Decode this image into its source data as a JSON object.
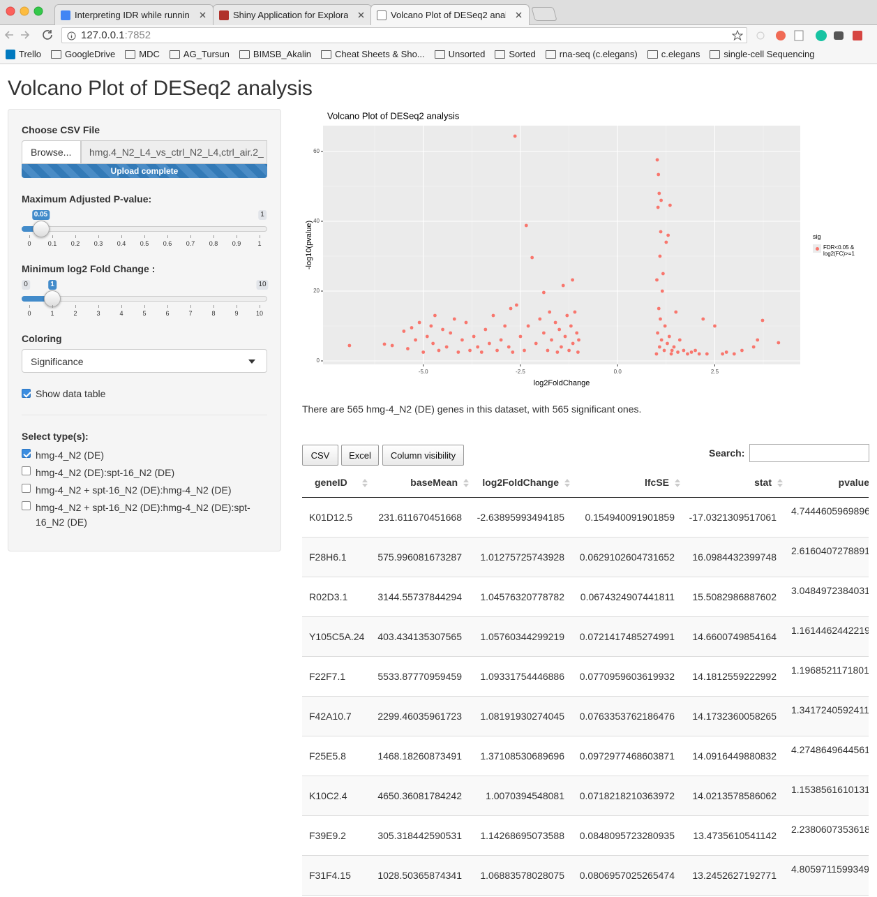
{
  "browser": {
    "tabs": [
      "Interpreting IDR while running",
      "Shiny Application for Explorato",
      "Volcano Plot of DESeq2 analys"
    ],
    "url_host": "127.0.0.1",
    "url_port": ":7852",
    "bookmarks": [
      "Trello",
      "GoogleDrive",
      "MDC",
      "AG_Tursun",
      "BIMSB_Akalin",
      "Cheat Sheets & Sho...",
      "Unsorted",
      "Sorted",
      "rna-seq (c.elegans)",
      "c.elegans",
      "single-cell Sequencing"
    ]
  },
  "app": {
    "title": "Volcano Plot of DESeq2 analysis",
    "file_label": "Choose CSV File",
    "browse": "Browse...",
    "file_name": "hmg.4_N2_L4_vs_ctrl_N2_L4,ctrl_air.2_",
    "upload_status": "Upload complete",
    "sliders": [
      {
        "label": "Maximum Adjusted P-value:",
        "min": 0,
        "max": 1,
        "value": 0.05,
        "ticks": [
          0,
          0.1,
          0.2,
          0.3,
          0.4,
          0.5,
          0.6,
          0.7,
          0.8,
          0.9,
          1
        ]
      },
      {
        "label": "Minimum log2 Fold Change :",
        "min": 0,
        "max": 10,
        "value": 1,
        "ticks": [
          0,
          1,
          2,
          3,
          4,
          5,
          6,
          7,
          8,
          9,
          10
        ]
      }
    ],
    "coloring_label": "Coloring",
    "coloring_value": "Significance",
    "show_table": {
      "label": "Show data table",
      "checked": true
    },
    "types_label": "Select type(s):",
    "types": [
      {
        "label": "hmg-4_N2 (DE)",
        "checked": true
      },
      {
        "label": "hmg-4_N2 (DE):spt-16_N2 (DE)",
        "checked": false
      },
      {
        "label": "hmg-4_N2 + spt-16_N2 (DE):hmg-4_N2 (DE)",
        "checked": false
      },
      {
        "label": "hmg-4_N2 + spt-16_N2 (DE):hmg-4_N2 (DE):spt-16_N2 (DE)",
        "checked": false
      }
    ]
  },
  "chart_data": {
    "type": "scatter",
    "title": "Volcano Plot of DESeq2 analysis",
    "xlabel": "log2FoldChange",
    "ylabel": "-log10(pvalue)",
    "xlim": [
      -7.58,
      4.7
    ],
    "ylim": [
      -1,
      67.4
    ],
    "xticks": [
      {
        "value": -5,
        "label": "-5.0"
      },
      {
        "value": -2.5,
        "label": "-2.5"
      },
      {
        "value": 0,
        "label": "0.0"
      },
      {
        "value": 2.5,
        "label": "2.5"
      }
    ],
    "yticks": [
      0,
      20,
      40,
      60
    ],
    "grid": true,
    "legend_title": "sig",
    "legend_position": "right",
    "series": [
      {
        "name": "FDR<0.05 & log2(FC)>=1",
        "color": "#f8766d",
        "x": [
          -6.9,
          -6.0,
          -5.8,
          -5.5,
          -5.4,
          -5.3,
          -5.2,
          -5.1,
          -5.0,
          -4.9,
          -4.8,
          -4.75,
          -4.7,
          -4.6,
          -4.5,
          -4.4,
          -4.3,
          -4.2,
          -4.1,
          -4.0,
          -3.9,
          -3.8,
          -3.7,
          -3.6,
          -3.5,
          -3.4,
          -3.3,
          -3.2,
          -3.1,
          -3.0,
          -2.9,
          -2.8,
          -2.75,
          -2.7,
          -2.64,
          -2.6,
          -2.5,
          -2.4,
          -2.35,
          -2.3,
          -2.2,
          -2.1,
          -2.0,
          -1.9,
          -1.9,
          -1.8,
          -1.75,
          -1.7,
          -1.6,
          -1.55,
          -1.5,
          -1.45,
          -1.4,
          -1.35,
          -1.3,
          -1.25,
          -1.2,
          -1.16,
          -1.15,
          -1.1,
          -1.05,
          -1.02,
          -1.0,
          1.0,
          1.01,
          1.02,
          1.03,
          1.04,
          1.05,
          1.06,
          1.07,
          1.08,
          1.09,
          1.1,
          1.11,
          1.12,
          1.13,
          1.15,
          1.17,
          1.2,
          1.22,
          1.25,
          1.28,
          1.3,
          1.33,
          1.35,
          1.38,
          1.4,
          1.45,
          1.5,
          1.55,
          1.6,
          1.7,
          1.8,
          1.9,
          2.0,
          2.1,
          2.2,
          2.3,
          2.5,
          2.7,
          2.8,
          3.0,
          3.2,
          3.5,
          3.6,
          3.73,
          4.14
        ],
        "values": [
          4.4,
          4.8,
          4.4,
          8.5,
          3.5,
          9.5,
          6,
          11,
          2.5,
          7,
          10,
          5,
          13,
          3,
          9,
          4,
          8,
          12,
          2.5,
          6,
          11,
          3,
          7,
          4,
          2.5,
          9,
          5,
          13,
          3,
          6,
          10,
          4,
          15,
          2.5,
          64.4,
          16,
          7,
          3,
          38.8,
          10,
          29.6,
          5,
          12,
          19.6,
          8,
          3,
          14,
          6,
          11,
          2.5,
          9,
          4,
          21.6,
          7,
          13,
          3,
          10,
          23.2,
          5,
          14,
          8,
          2.5,
          6,
          2,
          23.2,
          57.6,
          8,
          44,
          53.4,
          15,
          48,
          4,
          30,
          12,
          37,
          46,
          6,
          20,
          25,
          3,
          10,
          34,
          5,
          36,
          7,
          44.6,
          2,
          3,
          4,
          14,
          2.5,
          6,
          3,
          2,
          2.5,
          3,
          2,
          12,
          2,
          10,
          2,
          2.5,
          2,
          3,
          4,
          6,
          11.6,
          5.2
        ]
      }
    ]
  },
  "summary": "There are 565 hmg-4_N2 (DE) genes in this dataset, with 565 significant ones.",
  "table": {
    "buttons": [
      "CSV",
      "Excel",
      "Column visibility"
    ],
    "search_label": "Search:",
    "columns": [
      "geneID",
      "baseMean",
      "log2FoldChange",
      "lfcSE",
      "stat",
      "pvalue"
    ],
    "rows": [
      [
        "K01D12.5",
        "231.611670451668",
        "-2.63895993494185",
        "0.154940091901859",
        "-17.0321309517061",
        "4.7444605969896"
      ],
      [
        "F28H6.1",
        "575.996081673287",
        "1.01275725743928",
        "0.0629102604731652",
        "16.0984432399748",
        "2.6160407278891"
      ],
      [
        "R02D3.1",
        "3144.55737844294",
        "1.04576320778782",
        "0.0674324907441811",
        "15.5082986887602",
        "3.0484972384031"
      ],
      [
        "Y105C5A.24",
        "403.434135307565",
        "1.05760344299219",
        "0.0721417485274991",
        "14.6600749854164",
        "1.1614462442219"
      ],
      [
        "F22F7.1",
        "5533.87770959459",
        "1.09331754446886",
        "0.0770959603619932",
        "14.1812559222992",
        "1.1968521171801"
      ],
      [
        "F42A10.7",
        "2299.46035961723",
        "1.08191930274045",
        "0.0763353762186476",
        "14.1732360058265",
        "1.3417240592411"
      ],
      [
        "F25E5.8",
        "1468.18260873491",
        "1.37108530689696",
        "0.0972977468603871",
        "14.0916449880832",
        "4.2748649644561"
      ],
      [
        "K10C2.4",
        "4650.36081784242",
        "1.0070394548081",
        "0.0718218210363972",
        "14.0213578586062",
        "1.1538561610131"
      ],
      [
        "F39E9.2",
        "305.318442590531",
        "1.14268695073588",
        "0.0848095723280935",
        "13.4735610541142",
        "2.2380607353618"
      ],
      [
        "F31F4.15",
        "1028.50365874341",
        "1.06883578028075",
        "0.0806957025265474",
        "13.2452627192771",
        "4.8059711599349"
      ]
    ]
  }
}
